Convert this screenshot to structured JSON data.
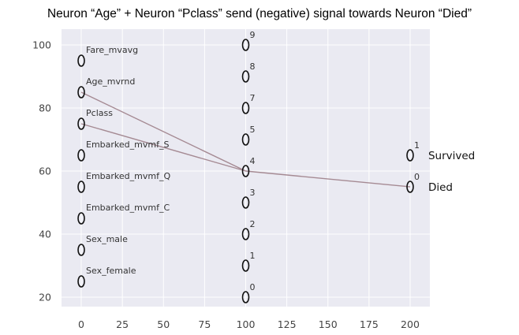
{
  "title": "Neuron “Age” + Neuron “Pclass” send (negative) signal towards Neuron “Died”",
  "colors": {
    "plot_background": "#eaeaf2",
    "edge": "#a58a93",
    "node_stroke": "#111111",
    "text": "#333333"
  },
  "chart_data": {
    "type": "scatter",
    "title": "Neuron “Age” + Neuron “Pclass” send (negative) signal towards Neuron “Died”",
    "xlim": [
      -12,
      212
    ],
    "ylim": [
      17,
      105
    ],
    "x_ticks": [
      0,
      25,
      50,
      75,
      100,
      125,
      150,
      175,
      200
    ],
    "y_ticks": [
      20,
      40,
      60,
      80,
      100
    ],
    "grid": true,
    "input_layer": [
      {
        "label": "Fare_mvavg",
        "x": 0,
        "y": 95
      },
      {
        "label": "Age_mvrnd",
        "x": 0,
        "y": 85
      },
      {
        "label": "Pclass",
        "x": 0,
        "y": 75
      },
      {
        "label": "Embarked_mvmf_S",
        "x": 0,
        "y": 65
      },
      {
        "label": "Embarked_mvmf_Q",
        "x": 0,
        "y": 55
      },
      {
        "label": "Embarked_mvmf_C",
        "x": 0,
        "y": 45
      },
      {
        "label": "Sex_male",
        "x": 0,
        "y": 35
      },
      {
        "label": "Sex_female",
        "x": 0,
        "y": 25
      }
    ],
    "hidden_layer": [
      {
        "label": "9",
        "x": 100,
        "y": 100
      },
      {
        "label": "8",
        "x": 100,
        "y": 90
      },
      {
        "label": "7",
        "x": 100,
        "y": 80
      },
      {
        "label": "5",
        "x": 100,
        "y": 70
      },
      {
        "label": "4",
        "x": 100,
        "y": 60
      },
      {
        "label": "3",
        "x": 100,
        "y": 50
      },
      {
        "label": "2",
        "x": 100,
        "y": 40
      },
      {
        "label": "1",
        "x": 100,
        "y": 30
      },
      {
        "label": "0",
        "x": 100,
        "y": 20
      }
    ],
    "output_layer": [
      {
        "label": "1",
        "x": 200,
        "y": 65,
        "name": "Survived"
      },
      {
        "label": "0",
        "x": 200,
        "y": 55,
        "name": "Died"
      }
    ],
    "edges": [
      {
        "from": [
          0,
          85
        ],
        "to": [
          100,
          60
        ]
      },
      {
        "from": [
          0,
          75
        ],
        "to": [
          100,
          60
        ]
      },
      {
        "from": [
          100,
          60
        ],
        "to": [
          200,
          55
        ]
      }
    ]
  }
}
